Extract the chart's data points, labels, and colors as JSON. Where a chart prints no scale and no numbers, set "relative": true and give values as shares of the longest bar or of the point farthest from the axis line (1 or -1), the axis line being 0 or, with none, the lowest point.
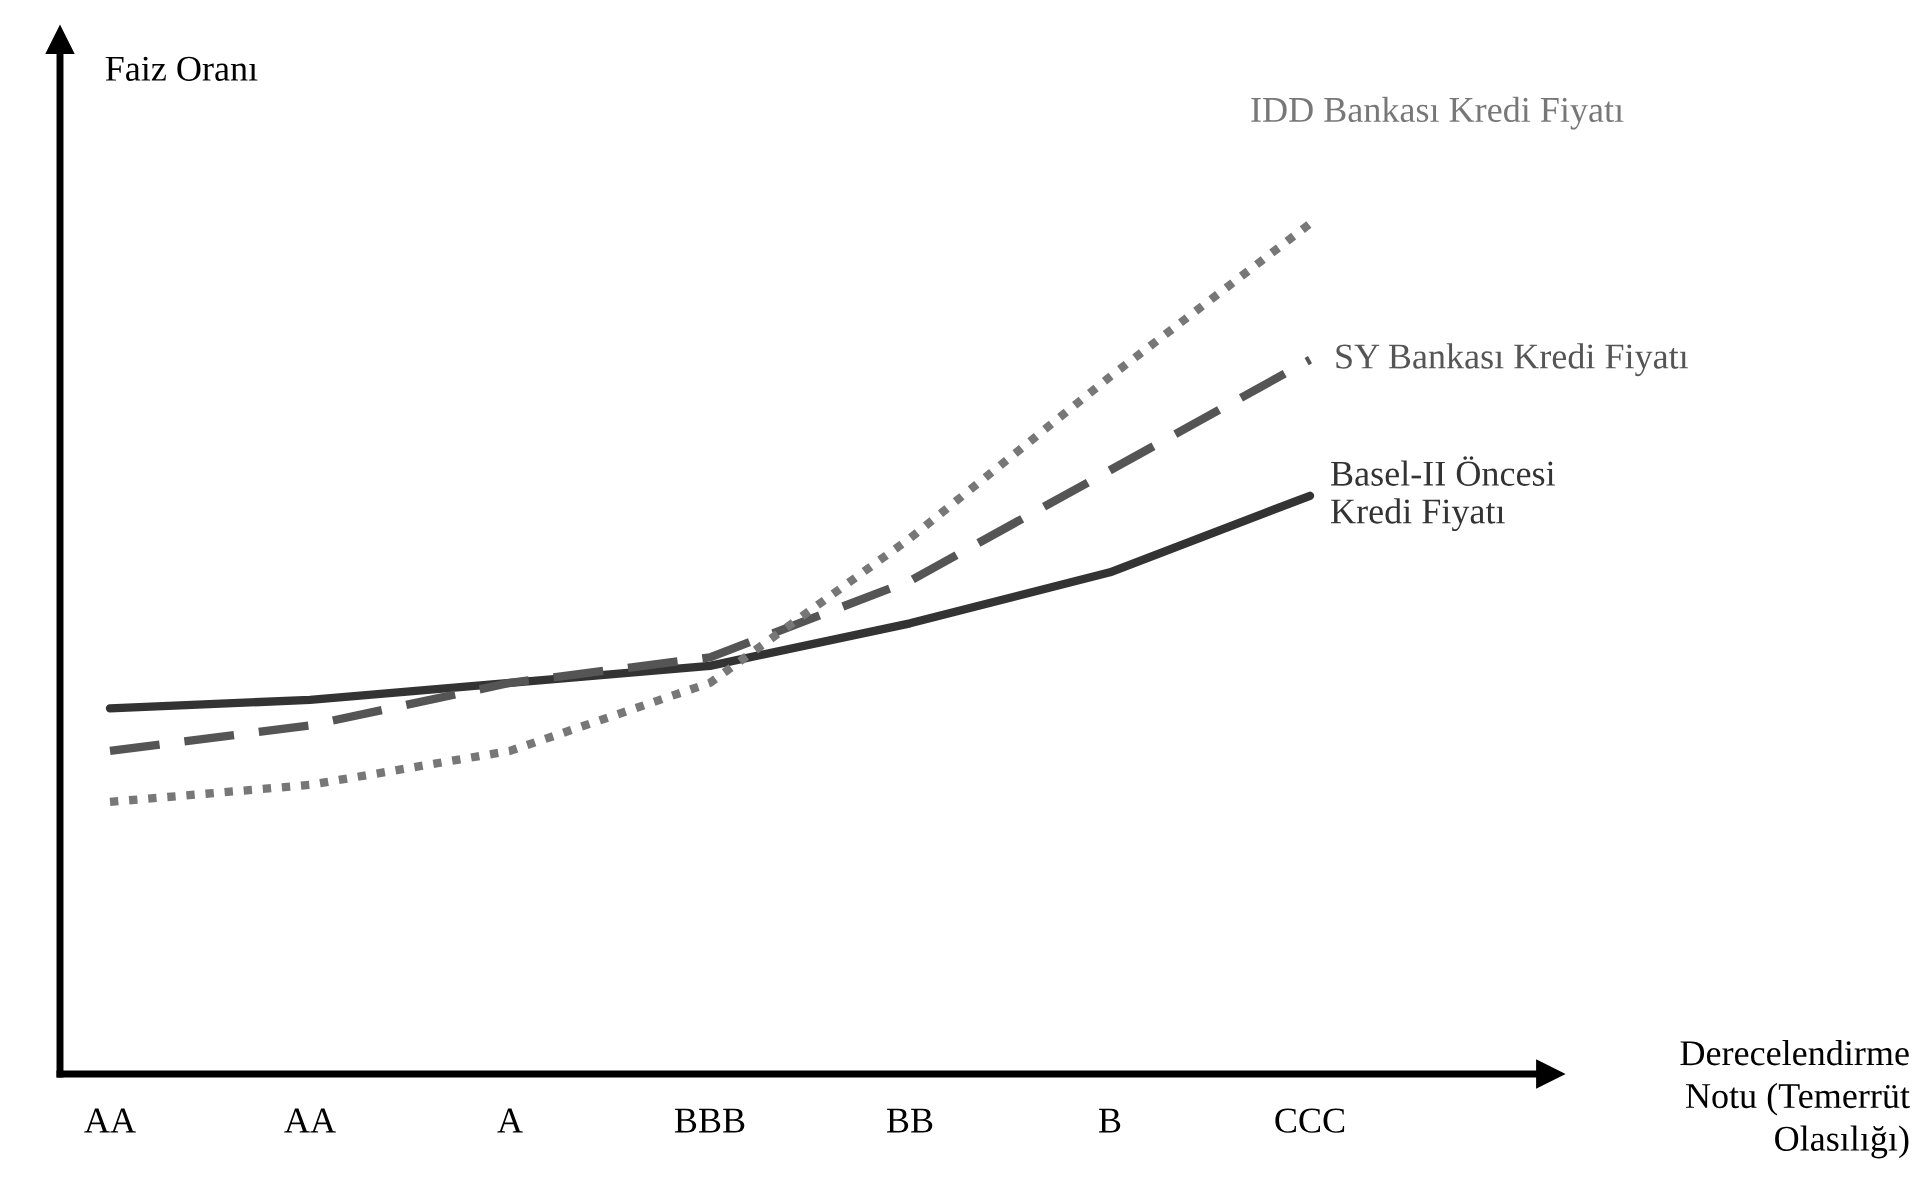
{
  "chart_data": {
    "type": "line",
    "relative": true,
    "ylabel": "Faiz Oranı",
    "xlabel": "Derecelendirme\nNotu (Temerrüt\nOlasılığı)",
    "categories": [
      "AA",
      "AA",
      "A",
      "BBB",
      "BB",
      "B",
      "CCC"
    ],
    "series": [
      {
        "name": "Basel-II Öncesi\nKredi Fiyatı",
        "color": "#333333",
        "line_style": "solid",
        "values": [
          0.43,
          0.44,
          0.46,
          0.48,
          0.53,
          0.59,
          0.68
        ]
      },
      {
        "name": "SY Bankası Kredi Fiyatı",
        "color": "#555555",
        "line_style": "dashed",
        "values": [
          0.38,
          0.41,
          0.46,
          0.49,
          0.58,
          0.71,
          0.84
        ]
      },
      {
        "name": "IDD Bankası Kredi Fiyatı",
        "color": "#777777",
        "line_style": "dotted",
        "values": [
          0.32,
          0.34,
          0.38,
          0.46,
          0.63,
          0.82,
          1.0
        ]
      }
    ],
    "legend": false,
    "grid": false,
    "marker": "none"
  }
}
